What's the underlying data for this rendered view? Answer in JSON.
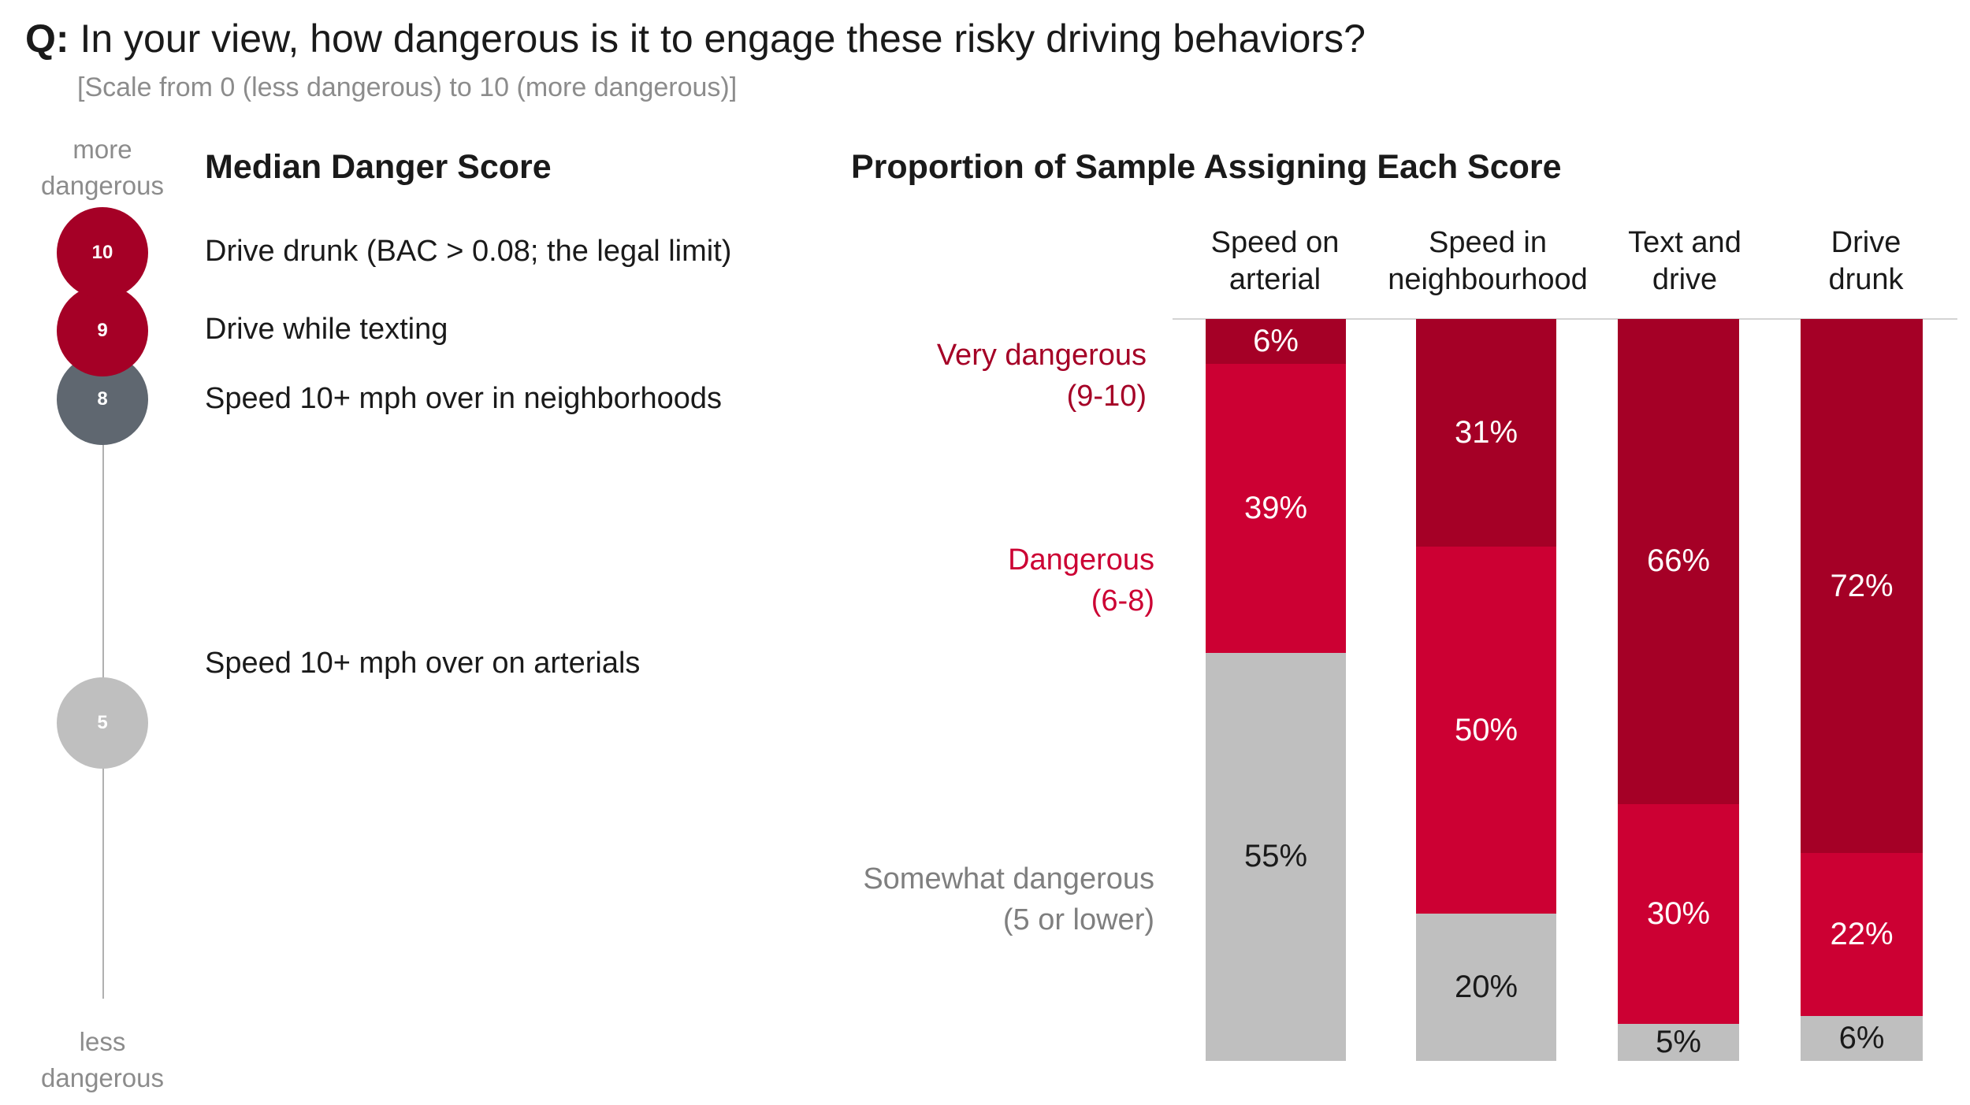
{
  "header": {
    "q_prefix": "Q:",
    "question": " In your view, how dangerous is it to engage these risky driving behaviors?",
    "scale_note": "[Scale from 0 (less dangerous) to 10 (more dangerous)]"
  },
  "left_panel": {
    "title": "Median Danger Score",
    "axis_top_line1": "more",
    "axis_top_line2": "dangerous",
    "axis_bottom_line1": "less",
    "axis_bottom_line2": "dangerous",
    "items": [
      {
        "score": "10",
        "label": "Drive drunk (BAC > 0.08; the legal limit)",
        "color": "#a50026"
      },
      {
        "score": "9",
        "label": "Drive while texting",
        "color": "#a50026"
      },
      {
        "score": "8",
        "label": "Speed 10+ mph over in neighborhoods",
        "color": "#5f6770"
      },
      {
        "score": "5",
        "label": "Speed 10+ mph over on arterials",
        "color": "#bfbfbf"
      }
    ]
  },
  "chart_data": {
    "type": "bar",
    "stacked": true,
    "normalized_percent": true,
    "title": "Proportion of Sample Assigning Each Score",
    "categories": [
      "Speed on arterial",
      "Speed in neighbourhood",
      "Text and drive",
      "Drive drunk"
    ],
    "category_lines": [
      [
        "Speed on",
        "arterial"
      ],
      [
        "Speed in",
        "neighbourhood"
      ],
      [
        "Text and",
        "drive"
      ],
      [
        "Drive",
        "drunk"
      ]
    ],
    "series": [
      {
        "name_line1": "Very dangerous",
        "name_line2": "(9-10)",
        "color": "#a50026",
        "values": [
          6,
          31,
          66,
          72
        ],
        "labels": [
          "6%",
          "31%",
          "66%",
          "72%"
        ]
      },
      {
        "name_line1": "Dangerous",
        "name_line2": "(6-8)",
        "color": "#cc0033",
        "values": [
          39,
          50,
          30,
          22
        ],
        "labels": [
          "39%",
          "50%",
          "30%",
          "22%"
        ]
      },
      {
        "name_line1": "Somewhat dangerous",
        "name_line2": "(5 or lower)",
        "color": "#bfbfbf",
        "values": [
          55,
          20,
          5,
          6
        ],
        "labels": [
          "55%",
          "20%",
          "5%",
          "6%"
        ]
      }
    ],
    "legend_colors": [
      "#a50026",
      "#cc0033",
      "#7f7f7f"
    ],
    "label_colors": [
      "#ffffff",
      "#ffffff",
      "#1a1a1a"
    ]
  }
}
